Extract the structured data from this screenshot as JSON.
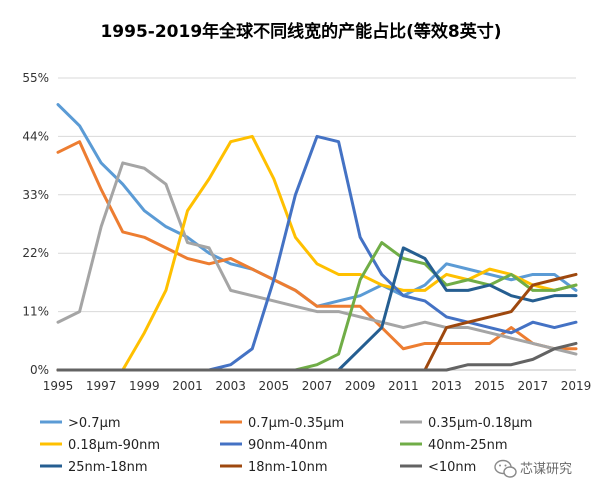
{
  "chart_data": {
    "type": "line",
    "title": "1995-2019年全球不同线宽的产能占比(等效8英寸)",
    "xlabel": "",
    "ylabel": "",
    "ylim": [
      0,
      55
    ],
    "yticks": [
      "0%",
      "11%",
      "22%",
      "33%",
      "44%",
      "55%"
    ],
    "ytick_values": [
      0,
      11,
      22,
      33,
      44,
      55
    ],
    "xticks": [
      "1995",
      "1997",
      "1999",
      "2001",
      "2003",
      "2005",
      "2007",
      "2009",
      "2011",
      "2013",
      "2015",
      "2017",
      "2019"
    ],
    "grid": true,
    "legend_position": "bottom",
    "x": [
      1995,
      1996,
      1997,
      1998,
      1999,
      2000,
      2001,
      2002,
      2003,
      2004,
      2005,
      2006,
      2007,
      2008,
      2009,
      2010,
      2011,
      2012,
      2013,
      2014,
      2015,
      2016,
      2017,
      2018,
      2019
    ],
    "series": [
      {
        "name": ">0.7μm",
        "color": "#5b9bd5",
        "values": [
          50,
          46,
          39,
          35,
          30,
          27,
          25,
          22,
          20,
          19,
          17,
          15,
          12,
          13,
          14,
          16,
          14,
          16,
          20,
          19,
          18,
          17,
          18,
          18,
          15
        ]
      },
      {
        "name": "0.7μm-0.35μm",
        "color": "#ed7d31",
        "values": [
          41,
          43,
          34,
          26,
          25,
          23,
          21,
          20,
          21,
          19,
          17,
          15,
          12,
          12,
          12,
          8,
          4,
          5,
          5,
          5,
          5,
          8,
          5,
          4,
          4
        ]
      },
      {
        "name": "0.35μm-0.18μm",
        "color": "#a5a5a5",
        "values": [
          9,
          11,
          27,
          39,
          38,
          35,
          24,
          23,
          15,
          14,
          13,
          12,
          11,
          11,
          10,
          9,
          8,
          9,
          8,
          8,
          7,
          6,
          5,
          4,
          3
        ]
      },
      {
        "name": "0.18μm-90nm",
        "color": "#ffc000",
        "values": [
          0,
          0,
          0,
          0,
          7,
          15,
          30,
          36,
          43,
          44,
          36,
          25,
          20,
          18,
          18,
          16,
          15,
          15,
          18,
          17,
          19,
          18,
          16,
          15,
          16
        ]
      },
      {
        "name": "90nm-40nm",
        "color": "#4472c4",
        "values": [
          0,
          0,
          0,
          0,
          0,
          0,
          0,
          0,
          1,
          4,
          17,
          33,
          44,
          43,
          25,
          18,
          14,
          13,
          10,
          9,
          8,
          7,
          9,
          8,
          9
        ]
      },
      {
        "name": "40nm-25nm",
        "color": "#70ad47",
        "values": [
          0,
          0,
          0,
          0,
          0,
          0,
          0,
          0,
          0,
          0,
          0,
          0,
          1,
          3,
          17,
          24,
          21,
          20,
          16,
          17,
          16,
          18,
          15,
          15,
          16
        ]
      },
      {
        "name": "25nm-18nm",
        "color": "#255e91",
        "values": [
          0,
          0,
          0,
          0,
          0,
          0,
          0,
          0,
          0,
          0,
          0,
          0,
          0,
          0,
          4,
          8,
          23,
          21,
          15,
          15,
          16,
          14,
          13,
          14,
          14
        ]
      },
      {
        "name": "18nm-10nm",
        "color": "#9e480e",
        "values": [
          0,
          0,
          0,
          0,
          0,
          0,
          0,
          0,
          0,
          0,
          0,
          0,
          0,
          0,
          0,
          0,
          0,
          0,
          8,
          9,
          10,
          11,
          16,
          17,
          18
        ]
      },
      {
        "name": "<10nm",
        "color": "#636363",
        "values": [
          0,
          0,
          0,
          0,
          0,
          0,
          0,
          0,
          0,
          0,
          0,
          0,
          0,
          0,
          0,
          0,
          0,
          0,
          0,
          1,
          1,
          1,
          2,
          4,
          5
        ]
      }
    ]
  },
  "watermark": {
    "text": "芯谋研究",
    "icon": "wechat-icon"
  }
}
